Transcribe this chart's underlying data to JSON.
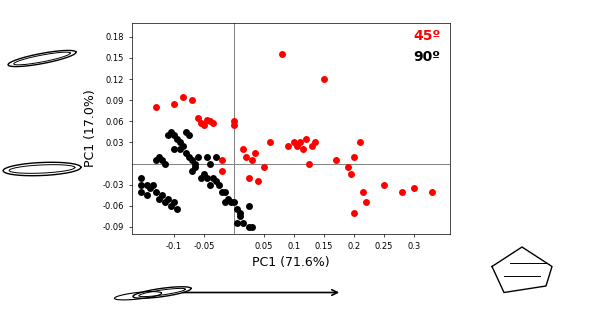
{
  "red_points": [
    [
      -0.13,
      0.08
    ],
    [
      -0.1,
      0.085
    ],
    [
      -0.085,
      0.095
    ],
    [
      -0.07,
      0.09
    ],
    [
      -0.06,
      0.065
    ],
    [
      -0.055,
      0.058
    ],
    [
      -0.05,
      0.055
    ],
    [
      -0.045,
      0.062
    ],
    [
      -0.04,
      0.06
    ],
    [
      -0.035,
      0.058
    ],
    [
      -0.02,
      0.005
    ],
    [
      -0.02,
      -0.01
    ],
    [
      0.0,
      0.06
    ],
    [
      0.0,
      0.055
    ],
    [
      0.015,
      0.02
    ],
    [
      0.02,
      0.01
    ],
    [
      0.025,
      -0.02
    ],
    [
      0.03,
      0.005
    ],
    [
      0.035,
      0.015
    ],
    [
      0.04,
      -0.025
    ],
    [
      0.05,
      -0.005
    ],
    [
      0.06,
      0.03
    ],
    [
      0.08,
      0.155
    ],
    [
      0.09,
      0.025
    ],
    [
      0.1,
      0.03
    ],
    [
      0.105,
      0.025
    ],
    [
      0.11,
      0.03
    ],
    [
      0.115,
      0.02
    ],
    [
      0.12,
      0.035
    ],
    [
      0.125,
      0.0
    ],
    [
      0.13,
      0.025
    ],
    [
      0.135,
      0.03
    ],
    [
      0.15,
      0.12
    ],
    [
      0.17,
      0.005
    ],
    [
      0.19,
      -0.005
    ],
    [
      0.195,
      -0.015
    ],
    [
      0.2,
      -0.07
    ],
    [
      0.2,
      0.01
    ],
    [
      0.21,
      0.03
    ],
    [
      0.215,
      -0.04
    ],
    [
      0.22,
      -0.055
    ],
    [
      0.25,
      -0.03
    ],
    [
      0.28,
      -0.04
    ],
    [
      0.3,
      -0.035
    ],
    [
      0.33,
      -0.04
    ]
  ],
  "black_points": [
    [
      -0.13,
      0.005
    ],
    [
      -0.125,
      0.01
    ],
    [
      -0.12,
      0.005
    ],
    [
      -0.115,
      0.0
    ],
    [
      -0.11,
      0.04
    ],
    [
      -0.105,
      0.045
    ],
    [
      -0.1,
      0.04
    ],
    [
      -0.1,
      0.02
    ],
    [
      -0.095,
      0.035
    ],
    [
      -0.09,
      0.03
    ],
    [
      -0.09,
      0.02
    ],
    [
      -0.085,
      0.025
    ],
    [
      -0.08,
      0.045
    ],
    [
      -0.08,
      0.015
    ],
    [
      -0.075,
      0.04
    ],
    [
      -0.075,
      0.01
    ],
    [
      -0.07,
      0.005
    ],
    [
      -0.07,
      -0.01
    ],
    [
      -0.065,
      0.0
    ],
    [
      -0.065,
      -0.005
    ],
    [
      -0.06,
      0.01
    ],
    [
      -0.055,
      -0.02
    ],
    [
      -0.05,
      -0.015
    ],
    [
      -0.045,
      0.01
    ],
    [
      -0.045,
      -0.02
    ],
    [
      -0.04,
      0.0
    ],
    [
      -0.04,
      -0.03
    ],
    [
      -0.035,
      -0.02
    ],
    [
      -0.03,
      0.01
    ],
    [
      -0.03,
      -0.025
    ],
    [
      -0.025,
      -0.03
    ],
    [
      -0.02,
      -0.04
    ],
    [
      -0.015,
      -0.04
    ],
    [
      -0.015,
      -0.055
    ],
    [
      -0.01,
      -0.05
    ],
    [
      -0.005,
      -0.055
    ],
    [
      0.0,
      -0.055
    ],
    [
      0.005,
      -0.065
    ],
    [
      0.005,
      -0.085
    ],
    [
      0.01,
      -0.07
    ],
    [
      0.01,
      -0.075
    ],
    [
      0.015,
      -0.085
    ],
    [
      0.025,
      -0.09
    ],
    [
      0.025,
      -0.06
    ],
    [
      0.03,
      -0.09
    ],
    [
      -0.155,
      -0.02
    ],
    [
      -0.155,
      -0.03
    ],
    [
      -0.155,
      -0.04
    ],
    [
      -0.145,
      -0.03
    ],
    [
      -0.145,
      -0.045
    ],
    [
      -0.14,
      -0.035
    ],
    [
      -0.135,
      -0.03
    ],
    [
      -0.13,
      -0.04
    ],
    [
      -0.125,
      -0.05
    ],
    [
      -0.12,
      -0.045
    ],
    [
      -0.115,
      -0.055
    ],
    [
      -0.11,
      -0.05
    ],
    [
      -0.105,
      -0.06
    ],
    [
      -0.1,
      -0.055
    ],
    [
      -0.095,
      -0.065
    ]
  ],
  "xlabel": "PC1 (71.6%)",
  "ylabel": "PC1 (17.0%)",
  "xlim": [
    -0.17,
    0.36
  ],
  "ylim": [
    -0.1,
    0.2
  ],
  "xticks": [
    -0.1,
    -0.05,
    0.05,
    0.1,
    0.15,
    0.2,
    0.25,
    0.3
  ],
  "yticks": [
    -0.09,
    -0.06,
    -0.03,
    0.03,
    0.06,
    0.09,
    0.12,
    0.15,
    0.18
  ],
  "red_label": "45º",
  "black_label": "90º",
  "red_color": "#ff0000",
  "black_color": "#000000",
  "marker_size": 5,
  "bg_color": "#ffffff",
  "tick_fontsize": 6,
  "label_fontsize": 9
}
